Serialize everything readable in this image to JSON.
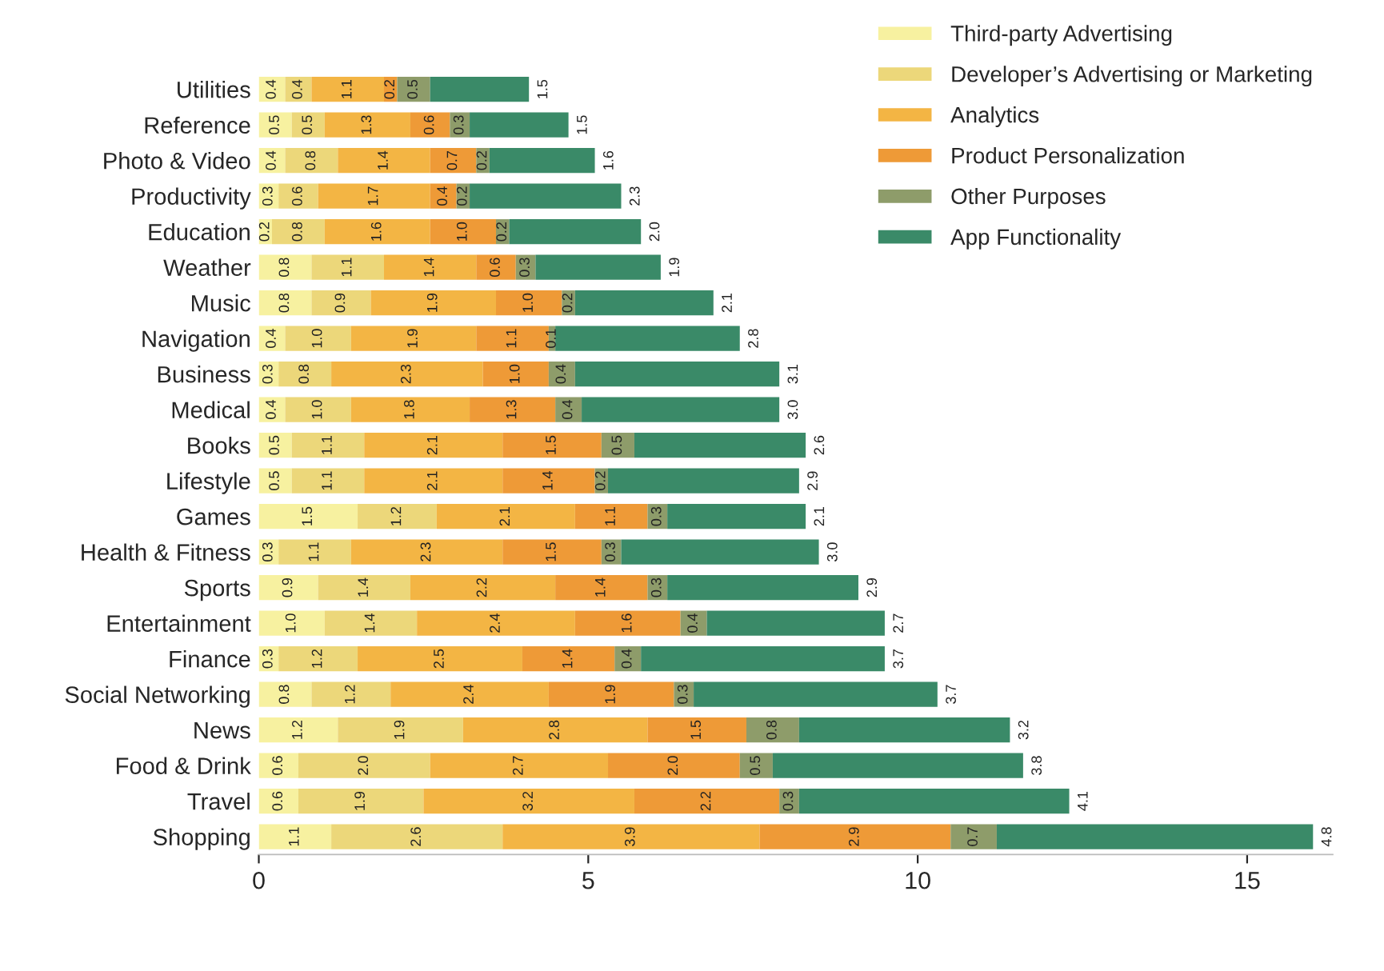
{
  "chart_data": {
    "type": "bar",
    "orientation": "horizontal",
    "stacked": true,
    "legend": "top right",
    "grid": false,
    "categories": [
      "Utilities",
      "Reference",
      "Photo & Video",
      "Productivity",
      "Education",
      "Weather",
      "Music",
      "Navigation",
      "Business",
      "Medical",
      "Books",
      "Lifestyle",
      "Games",
      "Health & Fitness",
      "Sports",
      "Entertainment",
      "Finance",
      "Social Networking",
      "News",
      "Food & Drink",
      "Travel",
      "Shopping"
    ],
    "xlim": [
      0,
      16.3
    ],
    "xticks": [
      0,
      5,
      10,
      15
    ],
    "series": [
      {
        "name": "Third-party Advertising",
        "color": "#f7f1a0",
        "values": [
          0.4,
          0.5,
          0.4,
          0.3,
          0.2,
          0.8,
          0.8,
          0.4,
          0.3,
          0.4,
          0.5,
          0.5,
          1.5,
          0.3,
          0.9,
          1.0,
          0.3,
          0.8,
          1.2,
          0.6,
          0.6,
          1.1
        ],
        "value_labels": [
          "0.4",
          "0.5",
          "0.4",
          "0.3",
          "0.2",
          "0.8",
          "0.8",
          "0.4",
          "0.3",
          "0.4",
          "0.5",
          "0.5",
          "1.5",
          "0.3",
          "0.9",
          "1.0",
          "0.3",
          "0.8",
          "1.2",
          "0.6",
          "0.6",
          "1.1"
        ]
      },
      {
        "name": "Developer’s Advertising or Marketing",
        "color": "#ecd77a",
        "values": [
          0.4,
          0.5,
          0.8,
          0.6,
          0.8,
          1.1,
          0.9,
          1.0,
          0.8,
          1.0,
          1.1,
          1.1,
          1.2,
          1.1,
          1.4,
          1.4,
          1.2,
          1.2,
          1.9,
          2.0,
          1.9,
          2.6
        ],
        "value_labels": [
          "0.4",
          "0.5",
          "0.8",
          "0.6",
          "0.8",
          "1.1",
          "0.9",
          "1.0",
          "0.8",
          "1.0",
          "1.1",
          "1.1",
          "1.2",
          "1.1",
          "1.4",
          "1.4",
          "1.2",
          "1.2",
          "1.9",
          "2.0",
          "1.9",
          "2.6"
        ]
      },
      {
        "name": "Analytics",
        "color": "#f3b544",
        "values": [
          1.1,
          1.3,
          1.4,
          1.7,
          1.6,
          1.4,
          1.9,
          1.9,
          2.3,
          1.8,
          2.1,
          2.1,
          2.1,
          2.3,
          2.2,
          2.4,
          2.5,
          2.4,
          2.8,
          2.7,
          3.2,
          3.9
        ],
        "value_labels": [
          "1.1",
          "1.3",
          "1.4",
          "1.7",
          "1.6",
          "1.4",
          "1.9",
          "1.9",
          "2.3",
          "1.8",
          "2.1",
          "2.1",
          "2.1",
          "2.3",
          "2.2",
          "2.4",
          "2.5",
          "2.4",
          "2.8",
          "2.7",
          "3.2",
          "3.9"
        ]
      },
      {
        "name": "Product Personalization",
        "color": "#ee9a37",
        "values": [
          0.2,
          0.6,
          0.7,
          0.4,
          1.0,
          0.6,
          1.0,
          1.1,
          1.0,
          1.3,
          1.5,
          1.4,
          1.1,
          1.5,
          1.4,
          1.6,
          1.4,
          1.9,
          1.5,
          2.0,
          2.2,
          2.9
        ],
        "value_labels": [
          "0.2",
          "0.6",
          "0.7",
          "0.4",
          "1.0",
          "0.6",
          "1.0",
          "1.1",
          "1.0",
          "1.3",
          "1.5",
          "1.4",
          "1.1",
          "1.5",
          "1.4",
          "1.6",
          "1.4",
          "1.9",
          "1.5",
          "2.0",
          "2.2",
          "2.9"
        ]
      },
      {
        "name": "Other Purposes",
        "color": "#8e9c6a",
        "values": [
          0.5,
          0.3,
          0.2,
          0.2,
          0.2,
          0.3,
          0.2,
          0.1,
          0.4,
          0.4,
          0.5,
          0.2,
          0.3,
          0.3,
          0.3,
          0.4,
          0.4,
          0.3,
          0.8,
          0.5,
          0.3,
          0.7
        ],
        "value_labels": [
          "0.5",
          "0.3",
          "0.2",
          "0.2",
          "0.2",
          "0.3",
          "0.2",
          "0.1",
          "0.4",
          "0.4",
          "0.5",
          "0.2",
          "0.3",
          "0.3",
          "0.3",
          "0.4",
          "0.4",
          "0.3",
          "0.8",
          "0.5",
          "0.3",
          "0.7"
        ]
      },
      {
        "name": "App Functionality",
        "color": "#3a8a68",
        "values": [
          1.5,
          1.5,
          1.6,
          2.3,
          2.0,
          1.9,
          2.1,
          2.8,
          3.1,
          3.0,
          2.6,
          2.9,
          2.1,
          3.0,
          2.9,
          2.7,
          3.7,
          3.7,
          3.2,
          3.8,
          4.1,
          4.8
        ],
        "value_labels": [
          "1.5",
          "1.5",
          "1.6",
          "2.3",
          "2.0",
          "1.9",
          "2.1",
          "2.8",
          "3.1",
          "3.0",
          "2.6",
          "2.9",
          "2.1",
          "3.0",
          "2.9",
          "2.7",
          "3.7",
          "3.7",
          "3.2",
          "3.8",
          "4.1",
          "4.8"
        ]
      }
    ]
  }
}
